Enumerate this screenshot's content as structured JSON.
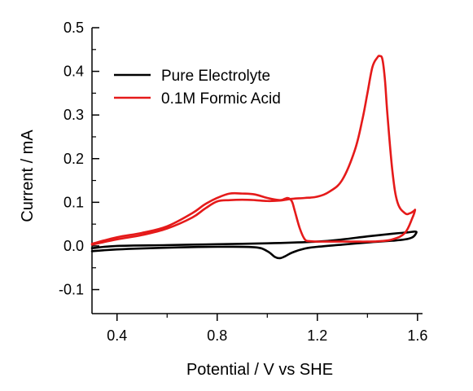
{
  "chart_data": {
    "type": "line",
    "title": "",
    "xlabel": "Potential / V vs SHE",
    "ylabel": "Current / mA",
    "xlim": [
      0.3,
      1.62
    ],
    "ylim": [
      -0.155,
      0.5
    ],
    "x_ticks": [
      0.4,
      0.8,
      1.2,
      1.6
    ],
    "x_tick_labels": [
      "0.4",
      "0.8",
      "1.2",
      "1.6"
    ],
    "x_minor_ticks": [
      0.6,
      1.0,
      1.4
    ],
    "y_ticks": [
      -0.1,
      0.0,
      0.1,
      0.2,
      0.3,
      0.4,
      0.5
    ],
    "y_tick_labels": [
      "-0.1",
      "0.0",
      "0.1",
      "0.2",
      "0.3",
      "0.4",
      "0.5"
    ],
    "y_minor_ticks": [
      -0.05,
      0.05,
      0.15,
      0.25,
      0.35,
      0.45
    ],
    "grid": false,
    "legend_position": "top-left",
    "series": [
      {
        "name": "Pure Electrolyte",
        "color": "#000000",
        "x": [
          0.3,
          0.4,
          0.6,
          0.8,
          1.0,
          1.2,
          1.3,
          1.4,
          1.5,
          1.56,
          1.59,
          1.595,
          1.58,
          1.55,
          1.5,
          1.4,
          1.3,
          1.2,
          1.15,
          1.1,
          1.07,
          1.05,
          1.03,
          1.0,
          0.95,
          0.8,
          0.6,
          0.4,
          0.3
        ],
        "y": [
          -0.005,
          0.0,
          0.002,
          0.004,
          0.006,
          0.01,
          0.015,
          0.022,
          0.028,
          0.031,
          0.033,
          0.03,
          0.02,
          0.015,
          0.012,
          0.008,
          0.003,
          -0.002,
          -0.006,
          -0.015,
          -0.024,
          -0.028,
          -0.025,
          -0.012,
          -0.003,
          -0.002,
          -0.004,
          -0.008,
          -0.012
        ]
      },
      {
        "name": "0.1M Formic Acid",
        "color": "#e51a1a",
        "x": [
          0.3,
          0.4,
          0.5,
          0.6,
          0.7,
          0.75,
          0.8,
          0.85,
          0.9,
          0.95,
          1.0,
          1.05,
          1.1,
          1.15,
          1.2,
          1.25,
          1.3,
          1.35,
          1.38,
          1.4,
          1.42,
          1.44,
          1.45,
          1.46,
          1.47,
          1.48,
          1.5,
          1.52,
          1.55,
          1.57,
          1.585,
          1.59,
          1.58,
          1.55,
          1.5,
          1.45,
          1.4,
          1.35,
          1.3,
          1.25,
          1.2,
          1.17,
          1.15,
          1.13,
          1.11,
          1.1,
          1.09,
          1.08,
          1.07,
          1.05,
          1.0,
          0.95,
          0.9,
          0.85,
          0.8,
          0.75,
          0.7,
          0.6,
          0.5,
          0.4,
          0.3
        ],
        "y": [
          0.003,
          0.015,
          0.025,
          0.04,
          0.065,
          0.085,
          0.102,
          0.105,
          0.106,
          0.105,
          0.103,
          0.104,
          0.108,
          0.11,
          0.113,
          0.125,
          0.152,
          0.22,
          0.29,
          0.35,
          0.41,
          0.432,
          0.435,
          0.427,
          0.38,
          0.3,
          0.17,
          0.1,
          0.075,
          0.075,
          0.08,
          0.082,
          0.065,
          0.03,
          0.015,
          0.011,
          0.01,
          0.01,
          0.01,
          0.01,
          0.01,
          0.011,
          0.015,
          0.04,
          0.08,
          0.1,
          0.108,
          0.11,
          0.108,
          0.105,
          0.11,
          0.118,
          0.12,
          0.12,
          0.11,
          0.095,
          0.075,
          0.045,
          0.03,
          0.02,
          0.005
        ]
      }
    ]
  }
}
